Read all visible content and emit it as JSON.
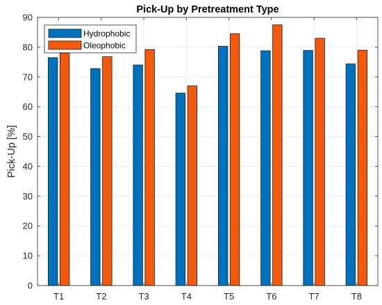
{
  "chart_data": {
    "type": "bar",
    "title": "Pick-Up by Pretreatment Type",
    "xlabel": "",
    "ylabel": "Pick-Up [%]",
    "categories": [
      "T1",
      "T2",
      "T3",
      "T4",
      "T5",
      "T6",
      "T7",
      "T8"
    ],
    "series": [
      {
        "name": "Hydrophobic",
        "color": "#0072BD",
        "values": [
          76.5,
          72.8,
          74.0,
          64.6,
          80.3,
          78.8,
          78.9,
          74.4
        ]
      },
      {
        "name": "Oleophobic",
        "color": "#F25A0F",
        "values": [
          78.0,
          76.8,
          79.2,
          67.0,
          84.5,
          87.5,
          83.0,
          79.0
        ]
      }
    ],
    "ylim": [
      0,
      90
    ],
    "yticks": [
      0,
      10,
      20,
      30,
      40,
      50,
      60,
      70,
      80,
      90
    ],
    "yticklabels": [
      "0",
      "10",
      "20",
      "30",
      "40",
      "50",
      "60",
      "70",
      "80",
      "90"
    ],
    "grid": true,
    "legend_position": "top-left"
  }
}
